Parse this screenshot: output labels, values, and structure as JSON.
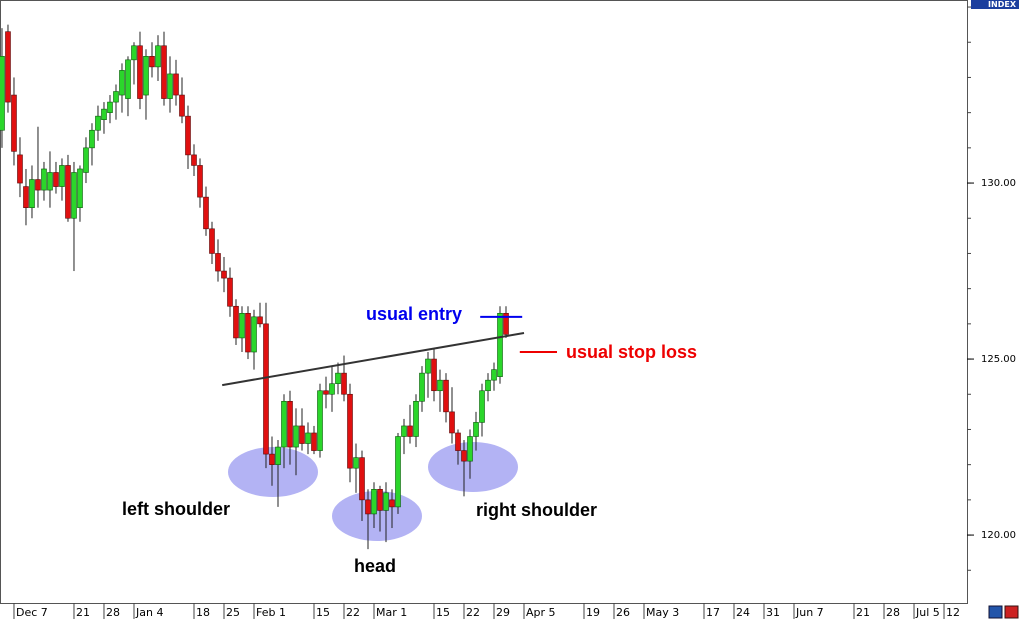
{
  "chart_data": {
    "type": "candlestick",
    "axis_name": "INDEX",
    "x": [
      -2,
      -1,
      0,
      1,
      2,
      3,
      4,
      5,
      6,
      7,
      8,
      9,
      10,
      11,
      12,
      13,
      14,
      15,
      16,
      17,
      18,
      19,
      20,
      21,
      22,
      23,
      24,
      25,
      26,
      27,
      28,
      29,
      30,
      31,
      32,
      33,
      34,
      35,
      36,
      37,
      38,
      39,
      40,
      41,
      42,
      43,
      44,
      45,
      46,
      47,
      48,
      49,
      50,
      51,
      52,
      53,
      54,
      55,
      56,
      57,
      58,
      59,
      60,
      61,
      62,
      63,
      64,
      65,
      66,
      67,
      68,
      69,
      70,
      71,
      72,
      73,
      74,
      75,
      76,
      77,
      78,
      79,
      80,
      81,
      82
    ],
    "open": [
      131.5,
      134.3,
      132.5,
      130.8,
      129.9,
      129.3,
      130.1,
      129.8,
      129.8,
      130.3,
      129.9,
      130.5,
      129.0,
      129.3,
      130.3,
      131.0,
      131.5,
      131.8,
      132.0,
      132.3,
      132.5,
      132.4,
      133.5,
      133.9,
      132.5,
      133.6,
      133.3,
      133.9,
      132.4,
      133.1,
      132.5,
      131.9,
      130.8,
      130.5,
      129.6,
      128.7,
      128.0,
      127.5,
      127.3,
      126.5,
      125.6,
      126.3,
      125.2,
      126.2,
      126.0,
      122.3,
      122.0,
      122.5,
      123.8,
      122.5,
      123.1,
      122.6,
      122.9,
      122.4,
      124.1,
      124.0,
      124.3,
      124.6,
      124.0,
      121.9,
      122.2,
      121.0,
      120.6,
      121.3,
      120.7,
      121.0,
      120.8,
      122.8,
      123.1,
      122.8,
      123.8,
      124.6,
      125.0,
      124.1,
      124.4,
      123.5,
      122.9,
      122.4,
      122.1,
      122.8,
      123.2,
      124.1,
      124.4,
      124.5,
      126.3
    ],
    "high": [
      134.4,
      134.5,
      133.0,
      131.3,
      130.4,
      130.5,
      131.6,
      130.6,
      130.9,
      130.6,
      130.7,
      130.8,
      130.6,
      130.5,
      131.3,
      131.7,
      132.2,
      132.3,
      132.5,
      132.8,
      133.4,
      133.6,
      134.0,
      134.3,
      133.8,
      134.0,
      134.2,
      134.3,
      133.6,
      133.5,
      133.0,
      132.2,
      131.1,
      130.7,
      129.9,
      128.9,
      128.4,
      127.9,
      127.6,
      126.7,
      126.5,
      126.5,
      126.4,
      126.6,
      126.6,
      122.8,
      122.7,
      124.0,
      124.1,
      123.6,
      123.6,
      123.2,
      123.1,
      124.3,
      124.5,
      124.8,
      124.9,
      125.1,
      124.3,
      122.6,
      122.4,
      121.3,
      121.5,
      121.4,
      121.5,
      121.3,
      122.9,
      123.3,
      123.7,
      124.0,
      124.8,
      125.2,
      125.3,
      124.7,
      124.6,
      124.2,
      123.0,
      122.7,
      123.0,
      123.5,
      124.3,
      124.6,
      124.9,
      126.5,
      126.5
    ],
    "low": [
      131.0,
      132.0,
      130.5,
      129.6,
      128.8,
      129.0,
      129.3,
      129.5,
      129.3,
      129.7,
      129.5,
      128.9,
      127.5,
      128.9,
      130.0,
      130.5,
      131.2,
      131.4,
      131.7,
      131.8,
      132.0,
      131.9,
      132.8,
      132.1,
      131.8,
      133.0,
      132.9,
      132.2,
      132.0,
      132.2,
      131.7,
      130.4,
      130.2,
      129.3,
      128.5,
      127.7,
      127.2,
      126.9,
      126.2,
      125.4,
      125.2,
      125.0,
      124.7,
      125.9,
      121.9,
      121.4,
      120.8,
      121.9,
      122.0,
      121.7,
      122.4,
      122.3,
      122.3,
      122.2,
      123.6,
      123.5,
      124.0,
      123.8,
      121.5,
      121.2,
      120.4,
      119.6,
      120.2,
      120.1,
      119.8,
      120.2,
      120.6,
      122.3,
      122.6,
      122.5,
      123.5,
      123.9,
      123.8,
      123.5,
      123.2,
      122.6,
      122.0,
      121.1,
      121.6,
      122.4,
      122.8,
      123.8,
      124.1,
      124.3,
      125.6
    ],
    "close": [
      133.6,
      132.3,
      130.9,
      130.0,
      129.3,
      130.1,
      129.8,
      130.4,
      130.3,
      129.9,
      130.5,
      129.0,
      130.3,
      130.4,
      131.0,
      131.5,
      131.9,
      132.1,
      132.3,
      132.6,
      133.2,
      133.5,
      133.9,
      132.4,
      133.6,
      133.3,
      133.9,
      132.4,
      133.1,
      132.5,
      131.9,
      130.8,
      130.5,
      129.6,
      128.7,
      128.0,
      127.5,
      127.3,
      126.5,
      125.6,
      126.3,
      125.2,
      126.2,
      126.0,
      122.3,
      122.0,
      122.5,
      123.8,
      122.5,
      123.1,
      122.6,
      122.9,
      122.4,
      124.1,
      124.0,
      124.3,
      124.6,
      124.0,
      121.9,
      122.2,
      121.0,
      120.6,
      121.3,
      120.7,
      121.2,
      120.8,
      122.8,
      123.1,
      122.8,
      123.8,
      124.6,
      125.0,
      124.1,
      124.4,
      123.5,
      122.9,
      122.4,
      122.1,
      122.8,
      123.2,
      124.1,
      124.4,
      124.7,
      126.3,
      125.7
    ],
    "up_color": "#2bd62b",
    "down_color": "#e01010",
    "xlim": [
      -2.33,
      158.83
    ],
    "xticks": [
      {
        "value": 0,
        "label": "Dec 7"
      },
      {
        "value": 10,
        "label": "21"
      },
      {
        "value": 15,
        "label": "28"
      },
      {
        "value": 20,
        "label": "Jan 4"
      },
      {
        "value": 30,
        "label": "18"
      },
      {
        "value": 35,
        "label": "25"
      },
      {
        "value": 40,
        "label": "Feb 1"
      },
      {
        "value": 50,
        "label": "15"
      },
      {
        "value": 55,
        "label": "22"
      },
      {
        "value": 60,
        "label": "Mar 1"
      },
      {
        "value": 70,
        "label": "15"
      },
      {
        "value": 75,
        "label": "22"
      },
      {
        "value": 80,
        "label": "29"
      },
      {
        "value": 85,
        "label": "Apr 5"
      },
      {
        "value": 95,
        "label": "19"
      },
      {
        "value": 100,
        "label": "26"
      },
      {
        "value": 105,
        "label": "May 3"
      },
      {
        "value": 115,
        "label": "17"
      },
      {
        "value": 120,
        "label": "24"
      },
      {
        "value": 125,
        "label": "31"
      },
      {
        "value": 130,
        "label": "Jun 7"
      },
      {
        "value": 140,
        "label": "21"
      },
      {
        "value": 145,
        "label": "28"
      },
      {
        "value": 150,
        "label": "Jul 5"
      },
      {
        "value": 155,
        "label": "12"
      }
    ],
    "ylim": [
      118.07,
      135.2
    ],
    "yticks": [
      {
        "value": 120,
        "label": "120.00"
      },
      {
        "value": 125,
        "label": "125.00"
      },
      {
        "value": 130,
        "label": "130.00"
      }
    ],
    "yminor": [
      119,
      120,
      121,
      122,
      123,
      124,
      125,
      126,
      127,
      128,
      129,
      130,
      131,
      132,
      133,
      134,
      135
    ],
    "neckline": {
      "x": [
        34.7,
        85
      ],
      "y": [
        124.26,
        125.74
      ]
    },
    "entry": {
      "text": "usual entry",
      "value": 126.2,
      "x": [
        77.7,
        84.7
      ],
      "color": "#0000ee"
    },
    "stop_loss": {
      "text": "usual stop loss",
      "value": 125.2,
      "x": [
        84.3,
        90.5
      ],
      "color": "#ee0000"
    },
    "labels": [
      "left shoulder",
      "head",
      "right shoulder"
    ]
  }
}
